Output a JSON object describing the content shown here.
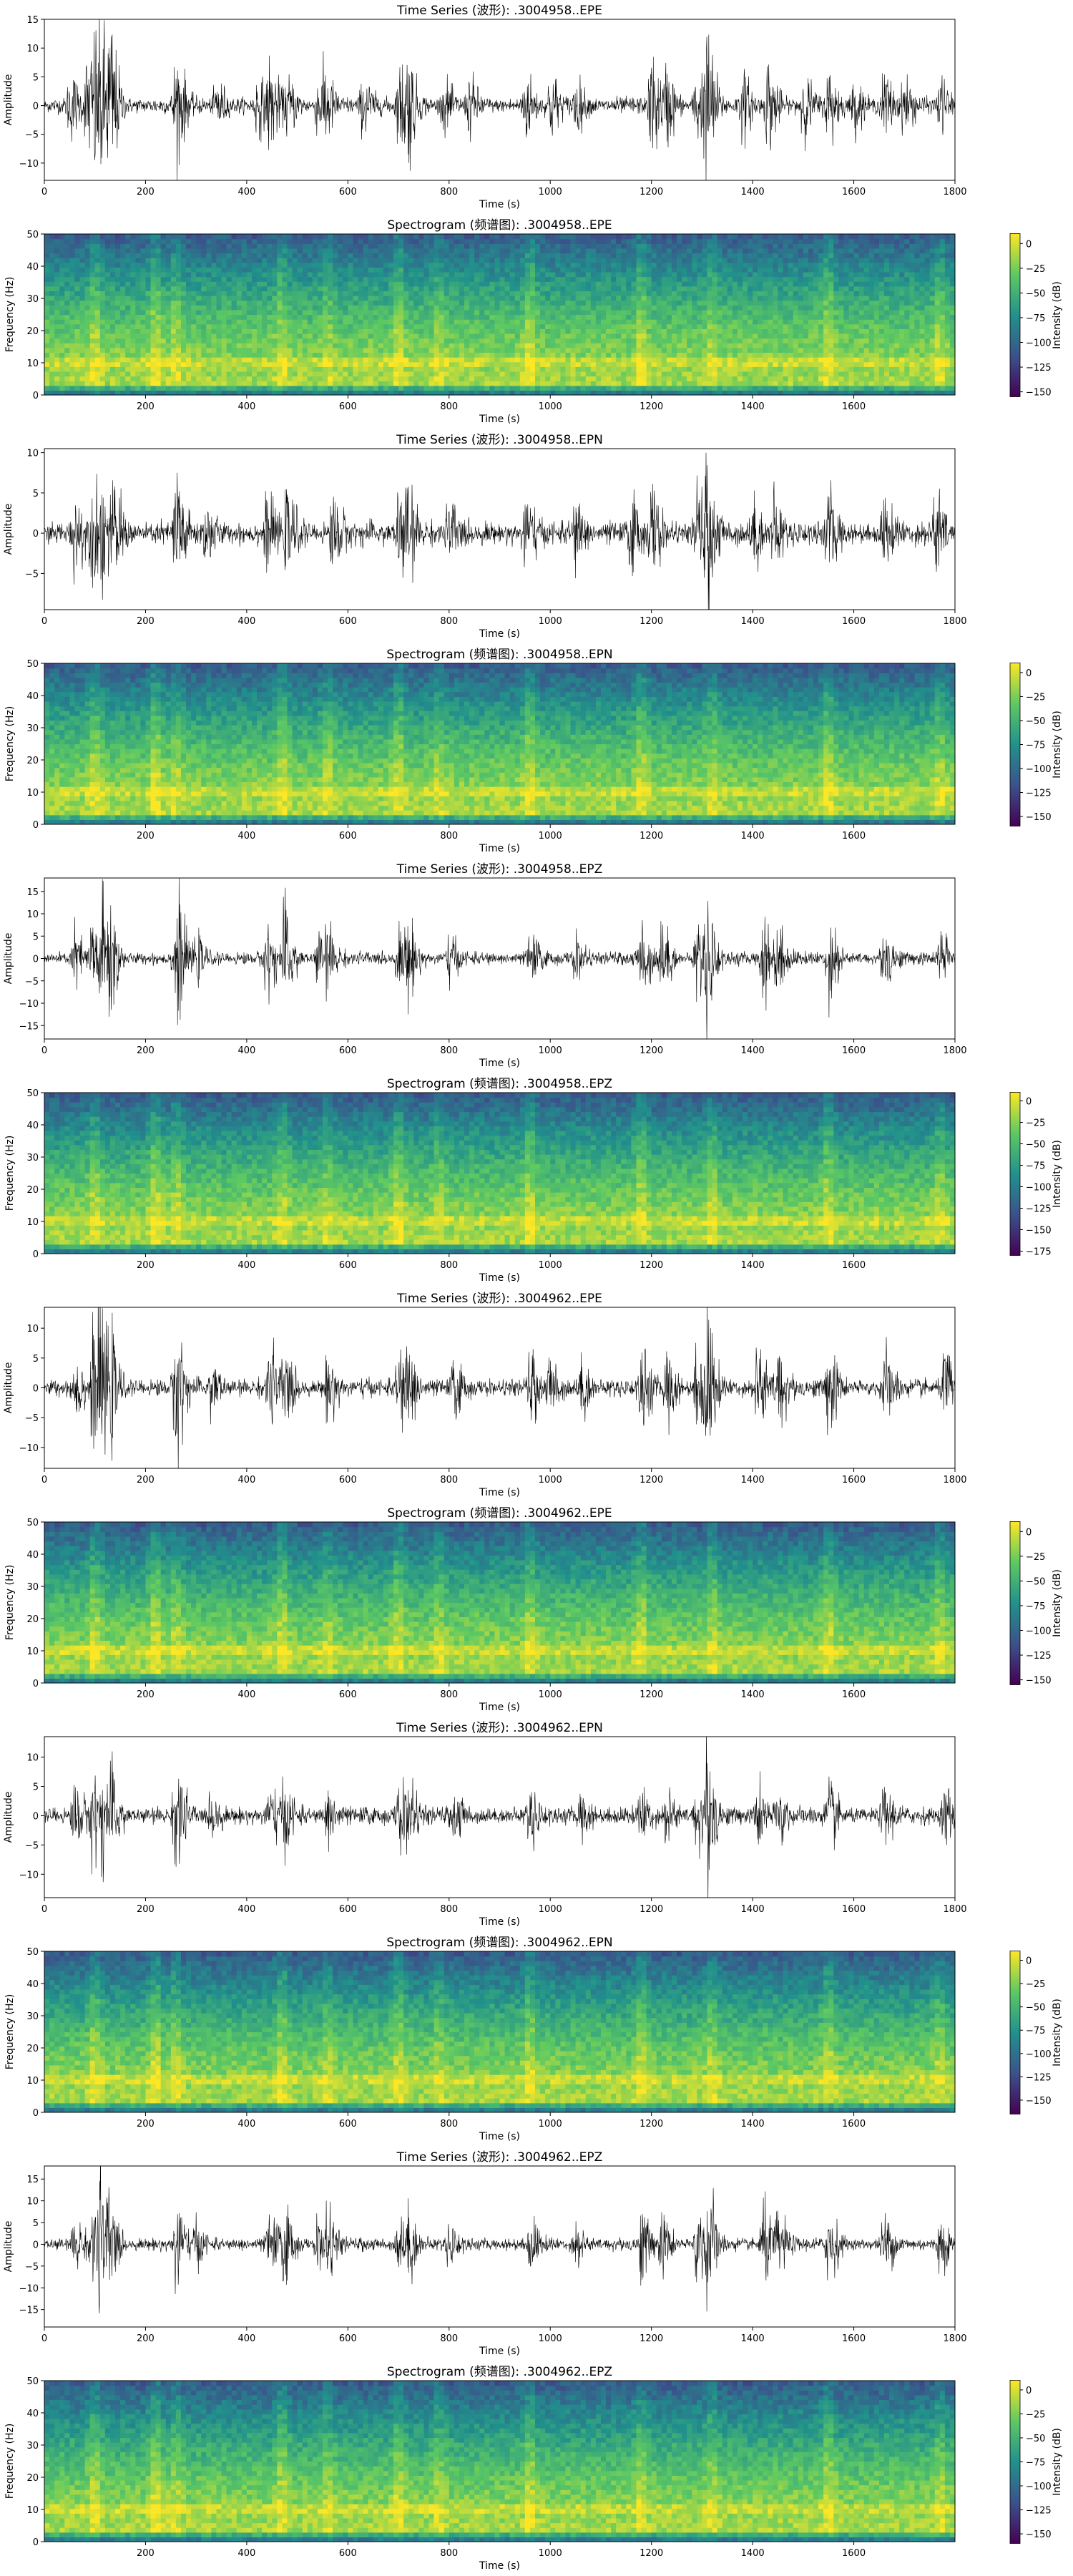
{
  "figure": {
    "background": "#ffffff",
    "colormap": "viridis",
    "colormap_stops": [
      "#440154",
      "#3b528b",
      "#21918c",
      "#5ec962",
      "#fde725"
    ]
  },
  "chart_data": [
    {
      "type": "line",
      "title": "Time Series (波形): .3004958..EPE",
      "xlabel": "Time (s)",
      "ylabel": "Amplitude",
      "xlim": [
        0,
        1800
      ],
      "ylim": [
        -13,
        15
      ],
      "xticks": [
        0,
        200,
        400,
        600,
        800,
        1000,
        1200,
        1400,
        1600,
        1800
      ],
      "yticks": [
        -10,
        -5,
        0,
        5,
        10,
        15
      ],
      "description_values": {
        "peak_amplitude": 14,
        "min_amplitude": -12
      },
      "bursts": [
        [
          50,
          6
        ],
        [
          85,
          10
        ],
        [
          100,
          11
        ],
        [
          115,
          10
        ],
        [
          130,
          12
        ],
        [
          260,
          11
        ],
        [
          340,
          5
        ],
        [
          420,
          5
        ],
        [
          445,
          8
        ],
        [
          480,
          5
        ],
        [
          540,
          5
        ],
        [
          555,
          6
        ],
        [
          630,
          5
        ],
        [
          700,
          6
        ],
        [
          710,
          5
        ],
        [
          720,
          6
        ],
        [
          790,
          4
        ],
        [
          840,
          5
        ],
        [
          950,
          6
        ],
        [
          1000,
          6
        ],
        [
          1050,
          5
        ],
        [
          1200,
          10
        ],
        [
          1230,
          7
        ],
        [
          1290,
          8
        ],
        [
          1310,
          12
        ],
        [
          1380,
          6
        ],
        [
          1430,
          9
        ],
        [
          1500,
          6
        ],
        [
          1550,
          7
        ],
        [
          1600,
          5
        ],
        [
          1660,
          6
        ],
        [
          1700,
          5
        ],
        [
          1770,
          5
        ]
      ]
    },
    {
      "type": "heatmap",
      "title": "Spectrogram (频谱图): .3004958..EPE",
      "xlabel": "Time (s)",
      "ylabel": "Frequency (Hz)",
      "xlim": [
        0,
        1800
      ],
      "ylim": [
        0,
        50
      ],
      "xticks": [
        200,
        400,
        600,
        800,
        1000,
        1200,
        1400,
        1600
      ],
      "yticks": [
        0,
        10,
        20,
        30,
        40,
        50
      ],
      "colorbar": {
        "label": "Intensity (dB)",
        "range": [
          -155,
          10
        ],
        "ticks": [
          0,
          -25,
          -50,
          -75,
          -100,
          -125,
          -150
        ]
      },
      "bursts": [
        [
          100,
          0.7
        ],
        [
          220,
          0.8
        ],
        [
          260,
          0.6
        ],
        [
          470,
          0.7
        ],
        [
          560,
          0.5
        ],
        [
          700,
          0.7
        ],
        [
          780,
          0.5
        ],
        [
          960,
          0.7
        ],
        [
          1180,
          0.7
        ],
        [
          1320,
          0.6
        ],
        [
          1550,
          0.7
        ],
        [
          1770,
          0.6
        ]
      ]
    },
    {
      "type": "line",
      "title": "Time Series (波形): .3004958..EPN",
      "xlabel": "Time (s)",
      "ylabel": "Amplitude",
      "xlim": [
        0,
        1800
      ],
      "ylim": [
        -9.5,
        10.5
      ],
      "xticks": [
        0,
        200,
        400,
        600,
        800,
        1000,
        1200,
        1400,
        1600,
        1800
      ],
      "yticks": [
        -5,
        0,
        5,
        10
      ],
      "description_values": {
        "peak_amplitude": 10,
        "min_amplitude": -8
      },
      "bursts": [
        [
          60,
          5
        ],
        [
          95,
          6
        ],
        [
          115,
          6
        ],
        [
          140,
          5
        ],
        [
          260,
          9
        ],
        [
          320,
          4
        ],
        [
          440,
          4
        ],
        [
          480,
          5
        ],
        [
          570,
          5
        ],
        [
          700,
          6
        ],
        [
          720,
          5
        ],
        [
          800,
          4
        ],
        [
          950,
          5
        ],
        [
          1050,
          4
        ],
        [
          1160,
          5
        ],
        [
          1200,
          6
        ],
        [
          1290,
          6
        ],
        [
          1310,
          8
        ],
        [
          1400,
          4
        ],
        [
          1440,
          5
        ],
        [
          1550,
          5
        ],
        [
          1660,
          4
        ],
        [
          1760,
          6
        ]
      ]
    },
    {
      "type": "heatmap",
      "title": "Spectrogram (频谱图): .3004958..EPN",
      "xlabel": "Time (s)",
      "ylabel": "Frequency (Hz)",
      "xlim": [
        0,
        1800
      ],
      "ylim": [
        0,
        50
      ],
      "xticks": [
        200,
        400,
        600,
        800,
        1000,
        1200,
        1400,
        1600
      ],
      "yticks": [
        0,
        10,
        20,
        30,
        40,
        50
      ],
      "colorbar": {
        "label": "Intensity (dB)",
        "range": [
          -160,
          10
        ],
        "ticks": [
          0,
          -25,
          -50,
          -75,
          -100,
          -125,
          -150
        ]
      },
      "bursts": [
        [
          100,
          0.7
        ],
        [
          220,
          0.8
        ],
        [
          260,
          0.6
        ],
        [
          470,
          0.7
        ],
        [
          560,
          0.5
        ],
        [
          700,
          0.7
        ],
        [
          780,
          0.5
        ],
        [
          960,
          0.7
        ],
        [
          1180,
          0.7
        ],
        [
          1320,
          0.6
        ],
        [
          1550,
          0.7
        ],
        [
          1770,
          0.6
        ]
      ]
    },
    {
      "type": "line",
      "title": "Time Series (波形): .3004958..EPZ",
      "xlabel": "Time (s)",
      "ylabel": "Amplitude",
      "xlim": [
        0,
        1800
      ],
      "ylim": [
        -18,
        18
      ],
      "xticks": [
        0,
        200,
        400,
        600,
        800,
        1000,
        1200,
        1400,
        1600,
        1800
      ],
      "yticks": [
        -15,
        -10,
        -5,
        0,
        5,
        10,
        15
      ],
      "description_values": {
        "peak_amplitude": 17,
        "min_amplitude": -16
      },
      "bursts": [
        [
          60,
          7
        ],
        [
          95,
          11
        ],
        [
          115,
          13
        ],
        [
          130,
          10
        ],
        [
          260,
          17
        ],
        [
          300,
          5
        ],
        [
          440,
          9
        ],
        [
          475,
          13
        ],
        [
          540,
          6
        ],
        [
          560,
          7
        ],
        [
          700,
          7
        ],
        [
          720,
          8
        ],
        [
          800,
          5
        ],
        [
          960,
          6
        ],
        [
          1050,
          5
        ],
        [
          1180,
          10
        ],
        [
          1220,
          9
        ],
        [
          1290,
          9
        ],
        [
          1310,
          14
        ],
        [
          1420,
          11
        ],
        [
          1450,
          8
        ],
        [
          1550,
          11
        ],
        [
          1660,
          8
        ],
        [
          1770,
          7
        ]
      ]
    },
    {
      "type": "heatmap",
      "title": "Spectrogram (频谱图): .3004958..EPZ",
      "xlabel": "Time (s)",
      "ylabel": "Frequency (Hz)",
      "xlim": [
        0,
        1800
      ],
      "ylim": [
        0,
        50
      ],
      "xticks": [
        200,
        400,
        600,
        800,
        1000,
        1200,
        1400,
        1600
      ],
      "yticks": [
        0,
        10,
        20,
        30,
        40,
        50
      ],
      "colorbar": {
        "label": "Intensity (dB)",
        "range": [
          -180,
          10
        ],
        "ticks": [
          0,
          -25,
          -50,
          -75,
          -100,
          -125,
          -150,
          -175
        ]
      },
      "bursts": [
        [
          100,
          0.7
        ],
        [
          220,
          0.8
        ],
        [
          260,
          0.6
        ],
        [
          470,
          0.7
        ],
        [
          560,
          0.5
        ],
        [
          700,
          0.7
        ],
        [
          780,
          0.5
        ],
        [
          960,
          0.7
        ],
        [
          1180,
          0.7
        ],
        [
          1320,
          0.6
        ],
        [
          1550,
          0.7
        ],
        [
          1770,
          0.6
        ]
      ]
    },
    {
      "type": "line",
      "title": "Time Series (波形): .3004962..EPE",
      "xlabel": "Time (s)",
      "ylabel": "Amplitude",
      "xlim": [
        0,
        1800
      ],
      "ylim": [
        -13.5,
        13.5
      ],
      "xticks": [
        0,
        200,
        400,
        600,
        800,
        1000,
        1200,
        1400,
        1600,
        1800
      ],
      "yticks": [
        -10,
        -5,
        0,
        5,
        10
      ],
      "description_values": {
        "peak_amplitude": 12,
        "min_amplitude": -13
      },
      "bursts": [
        [
          60,
          6
        ],
        [
          95,
          10
        ],
        [
          110,
          11
        ],
        [
          130,
          8
        ],
        [
          260,
          12
        ],
        [
          330,
          5
        ],
        [
          445,
          8
        ],
        [
          475,
          7
        ],
        [
          560,
          6
        ],
        [
          700,
          7
        ],
        [
          720,
          6
        ],
        [
          810,
          5
        ],
        [
          960,
          6
        ],
        [
          1000,
          5
        ],
        [
          1060,
          5
        ],
        [
          1180,
          8
        ],
        [
          1230,
          7
        ],
        [
          1290,
          8
        ],
        [
          1310,
          12
        ],
        [
          1410,
          9
        ],
        [
          1450,
          8
        ],
        [
          1550,
          8
        ],
        [
          1660,
          7
        ],
        [
          1780,
          7
        ]
      ]
    },
    {
      "type": "heatmap",
      "title": "Spectrogram (频谱图): .3004962..EPE",
      "xlabel": "Time (s)",
      "ylabel": "Frequency (Hz)",
      "xlim": [
        0,
        1800
      ],
      "ylim": [
        0,
        50
      ],
      "xticks": [
        200,
        400,
        600,
        800,
        1000,
        1200,
        1400,
        1600
      ],
      "yticks": [
        0,
        10,
        20,
        30,
        40,
        50
      ],
      "colorbar": {
        "label": "Intensity (dB)",
        "range": [
          -155,
          10
        ],
        "ticks": [
          0,
          -25,
          -50,
          -75,
          -100,
          -125,
          -150
        ]
      },
      "bursts": [
        [
          100,
          0.7
        ],
        [
          220,
          0.8
        ],
        [
          260,
          0.6
        ],
        [
          470,
          0.7
        ],
        [
          560,
          0.5
        ],
        [
          700,
          0.7
        ],
        [
          780,
          0.5
        ],
        [
          960,
          0.7
        ],
        [
          1180,
          0.7
        ],
        [
          1320,
          0.6
        ],
        [
          1550,
          0.7
        ],
        [
          1770,
          0.6
        ]
      ]
    },
    {
      "type": "line",
      "title": "Time Series (波形): .3004962..EPN",
      "xlabel": "Time (s)",
      "ylabel": "Amplitude",
      "xlim": [
        0,
        1800
      ],
      "ylim": [
        -14,
        13.5
      ],
      "xticks": [
        0,
        200,
        400,
        600,
        800,
        1000,
        1200,
        1400,
        1600,
        1800
      ],
      "yticks": [
        -10,
        -5,
        0,
        5,
        10
      ],
      "description_values": {
        "peak_amplitude": 12,
        "min_amplitude": -12
      },
      "bursts": [
        [
          60,
          6
        ],
        [
          95,
          8
        ],
        [
          115,
          7
        ],
        [
          135,
          6
        ],
        [
          260,
          11
        ],
        [
          330,
          4
        ],
        [
          445,
          5
        ],
        [
          475,
          6
        ],
        [
          560,
          5
        ],
        [
          700,
          6
        ],
        [
          720,
          5
        ],
        [
          810,
          4
        ],
        [
          960,
          5
        ],
        [
          1060,
          4
        ],
        [
          1180,
          5
        ],
        [
          1230,
          5
        ],
        [
          1290,
          6
        ],
        [
          1310,
          12
        ],
        [
          1410,
          6
        ],
        [
          1450,
          5
        ],
        [
          1550,
          6
        ],
        [
          1660,
          5
        ],
        [
          1780,
          6
        ]
      ]
    },
    {
      "type": "heatmap",
      "title": "Spectrogram (频谱图): .3004962..EPN",
      "xlabel": "Time (s)",
      "ylabel": "Frequency (Hz)",
      "xlim": [
        0,
        1800
      ],
      "ylim": [
        0,
        50
      ],
      "xticks": [
        200,
        400,
        600,
        800,
        1000,
        1200,
        1400,
        1600
      ],
      "yticks": [
        0,
        10,
        20,
        30,
        40,
        50
      ],
      "colorbar": {
        "label": "Intensity (dB)",
        "range": [
          -165,
          10
        ],
        "ticks": [
          0,
          -25,
          -50,
          -75,
          -100,
          -125,
          -150
        ]
      },
      "bursts": [
        [
          100,
          0.7
        ],
        [
          220,
          0.8
        ],
        [
          260,
          0.6
        ],
        [
          470,
          0.7
        ],
        [
          560,
          0.5
        ],
        [
          700,
          0.7
        ],
        [
          780,
          0.5
        ],
        [
          960,
          0.7
        ],
        [
          1180,
          0.7
        ],
        [
          1320,
          0.6
        ],
        [
          1550,
          0.7
        ],
        [
          1770,
          0.6
        ]
      ]
    },
    {
      "type": "line",
      "title": "Time Series (波形): .3004962..EPZ",
      "xlabel": "Time (s)",
      "ylabel": "Amplitude",
      "xlim": [
        0,
        1800
      ],
      "ylim": [
        -19,
        18
      ],
      "xticks": [
        0,
        200,
        400,
        600,
        800,
        1000,
        1200,
        1400,
        1600,
        1800
      ],
      "yticks": [
        -15,
        -10,
        -5,
        0,
        5,
        10,
        15
      ],
      "description_values": {
        "peak_amplitude": 16,
        "min_amplitude": -16
      },
      "bursts": [
        [
          60,
          7
        ],
        [
          95,
          10
        ],
        [
          110,
          16
        ],
        [
          130,
          9
        ],
        [
          260,
          13
        ],
        [
          300,
          5
        ],
        [
          445,
          8
        ],
        [
          475,
          10
        ],
        [
          540,
          6
        ],
        [
          560,
          7
        ],
        [
          700,
          7
        ],
        [
          720,
          7
        ],
        [
          800,
          5
        ],
        [
          960,
          6
        ],
        [
          1050,
          5
        ],
        [
          1180,
          9
        ],
        [
          1220,
          8
        ],
        [
          1290,
          9
        ],
        [
          1310,
          15
        ],
        [
          1420,
          11
        ],
        [
          1450,
          8
        ],
        [
          1550,
          10
        ],
        [
          1660,
          8
        ],
        [
          1770,
          7
        ]
      ]
    },
    {
      "type": "heatmap",
      "title": "Spectrogram (频谱图): .3004962..EPZ",
      "xlabel": "Time (s)",
      "ylabel": "Frequency (Hz)",
      "xlim": [
        0,
        1800
      ],
      "ylim": [
        0,
        50
      ],
      "xticks": [
        200,
        400,
        600,
        800,
        1000,
        1200,
        1400,
        1600
      ],
      "yticks": [
        0,
        10,
        20,
        30,
        40,
        50
      ],
      "colorbar": {
        "label": "Intensity (dB)",
        "range": [
          -160,
          10
        ],
        "ticks": [
          0,
          -25,
          -50,
          -75,
          -100,
          -125,
          -150
        ]
      },
      "bursts": [
        [
          100,
          0.7
        ],
        [
          220,
          0.8
        ],
        [
          260,
          0.6
        ],
        [
          470,
          0.7
        ],
        [
          560,
          0.5
        ],
        [
          700,
          0.7
        ],
        [
          780,
          0.5
        ],
        [
          960,
          0.7
        ],
        [
          1180,
          0.7
        ],
        [
          1320,
          0.6
        ],
        [
          1550,
          0.7
        ],
        [
          1770,
          0.6
        ]
      ]
    }
  ]
}
